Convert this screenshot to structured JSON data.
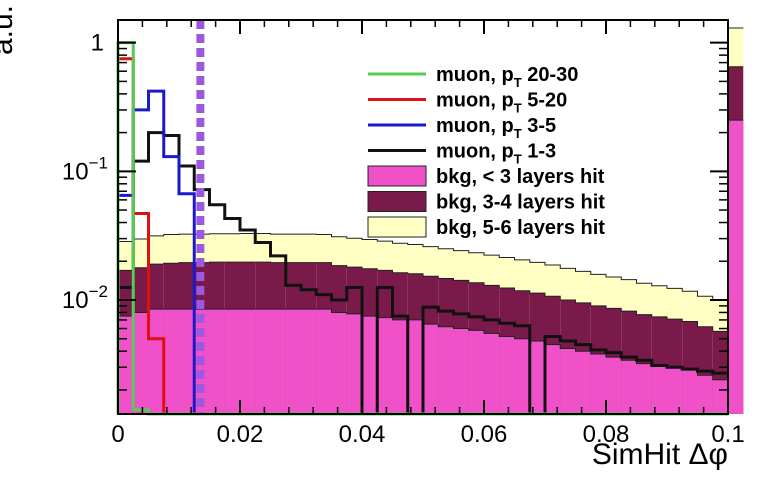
{
  "chart_data": {
    "type": "histogram",
    "title": "",
    "xlabel": "SimHit Δφ",
    "ylabel": "a.u.",
    "xlim": [
      0,
      0.1
    ],
    "ylim": [
      0.0013,
      1.5
    ],
    "yscale": "log",
    "bin_width": 0.0025,
    "x_ticks": [
      {
        "value": 0,
        "label": "0"
      },
      {
        "value": 0.02,
        "label": "0.02"
      },
      {
        "value": 0.04,
        "label": "0.04"
      },
      {
        "value": 0.06,
        "label": "0.06"
      },
      {
        "value": 0.08,
        "label": "0.08"
      },
      {
        "value": 0.1,
        "label": "0.1"
      }
    ],
    "y_ticks": [
      {
        "value": 1,
        "base": "1",
        "exp": ""
      },
      {
        "value": 0.1,
        "base": "10",
        "exp": "−1"
      },
      {
        "value": 0.01,
        "base": "10",
        "exp": "−2"
      }
    ],
    "cut_line": {
      "x": 0.0135,
      "color": "#9b59e0"
    },
    "legend": {
      "placement": "top-right",
      "entries": [
        {
          "kind": "line",
          "color": "#55cc55",
          "text": "muon, p",
          "sub": "T",
          "after": " 20-30"
        },
        {
          "kind": "line",
          "color": "#dd1111",
          "text": "muon, p",
          "sub": "T",
          "after": " 5-20"
        },
        {
          "kind": "line",
          "color": "#1a1acc",
          "text": "muon, p",
          "sub": "T",
          "after": " 3-5"
        },
        {
          "kind": "line",
          "color": "#111111",
          "text": "muon, p",
          "sub": "T",
          "after": " 1-3"
        },
        {
          "kind": "box",
          "color": "#f050c8",
          "text": "bkg, < 3 layers hit",
          "sub": "",
          "after": ""
        },
        {
          "kind": "box",
          "color": "#7a1a4a",
          "text": "bkg, 3-4 layers hit",
          "sub": "",
          "after": ""
        },
        {
          "kind": "box",
          "color": "#ffffc4",
          "text": "bkg, 5-6 layers hit",
          "sub": "",
          "after": ""
        }
      ]
    },
    "stacked_series": [
      {
        "name": "bkg, < 3 layers hit",
        "color": "#f050c8",
        "values": [
          0.0075,
          0.008,
          0.0085,
          0.0085,
          0.0085,
          0.0085,
          0.0085,
          0.0085,
          0.0085,
          0.0085,
          0.0085,
          0.0085,
          0.0085,
          0.0085,
          0.008,
          0.0078,
          0.0075,
          0.0073,
          0.007,
          0.007,
          0.0065,
          0.0062,
          0.006,
          0.0058,
          0.0055,
          0.0052,
          0.005,
          0.0048,
          0.0045,
          0.0042,
          0.004,
          0.0038,
          0.0036,
          0.0034,
          0.0032,
          0.0031,
          0.003,
          0.0029,
          0.0026,
          0.0024,
          0.25
        ]
      },
      {
        "name": "bkg, 3-4 layers hit",
        "color": "#7a1a4a",
        "values": [
          0.0095,
          0.0098,
          0.0105,
          0.0108,
          0.011,
          0.011,
          0.0112,
          0.0112,
          0.0112,
          0.0112,
          0.011,
          0.011,
          0.011,
          0.011,
          0.0105,
          0.0102,
          0.01,
          0.0097,
          0.0093,
          0.009,
          0.0088,
          0.0085,
          0.0082,
          0.0078,
          0.0075,
          0.0072,
          0.0068,
          0.0065,
          0.0062,
          0.0058,
          0.0055,
          0.0052,
          0.005,
          0.0048,
          0.0045,
          0.0043,
          0.0041,
          0.0039,
          0.0036,
          0.0033,
          0.4
        ]
      },
      {
        "name": "bkg, 5-6 layers hit",
        "color": "#ffffc4",
        "values": [
          0.0115,
          0.012,
          0.0125,
          0.013,
          0.013,
          0.013,
          0.013,
          0.013,
          0.0132,
          0.0132,
          0.013,
          0.013,
          0.013,
          0.0128,
          0.0125,
          0.0122,
          0.012,
          0.0117,
          0.0113,
          0.011,
          0.0107,
          0.0103,
          0.01,
          0.0097,
          0.0093,
          0.009,
          0.0087,
          0.0083,
          0.008,
          0.0076,
          0.0072,
          0.0068,
          0.0065,
          0.0062,
          0.0058,
          0.0055,
          0.0052,
          0.0049,
          0.0045,
          0.0042,
          0.65
        ]
      }
    ],
    "line_series": [
      {
        "name": "muon, pT 20-30",
        "color": "#55cc55",
        "values": [
          1.0,
          0.0014,
          0.0013,
          0.0013,
          0.0013,
          0.0013,
          0.0013,
          0.0013,
          0.0013,
          0.0013,
          0.0013,
          0.0013,
          0.0013,
          0.0013,
          0.0013,
          0.0013,
          0.0013,
          0.0013,
          0.0013,
          0.0013,
          0.0013,
          0.0013,
          0.0013,
          0.0013,
          0.0013,
          0.0013,
          0.0013,
          0.0013,
          0.0013,
          0.0013,
          0.0013,
          0.0013,
          0.0013,
          0.0013,
          0.0013,
          0.0013,
          0.0013,
          0.0013,
          0.0013,
          0.0013
        ]
      },
      {
        "name": "muon, pT 5-20",
        "color": "#dd1111",
        "values": [
          0.75,
          0.047,
          0.005,
          0.0013,
          0.0013,
          0.0013,
          0.0013,
          0.0013,
          0.0013,
          0.0013,
          0.0013,
          0.0013,
          0.0013,
          0.0013,
          0.0013,
          0.0013,
          0.0013,
          0.0013,
          0.0013,
          0.0013,
          0.0013,
          0.0013,
          0.0013,
          0.0013,
          0.0013,
          0.0013,
          0.0013,
          0.0013,
          0.0013,
          0.0013,
          0.0013,
          0.0013,
          0.0013,
          0.0013,
          0.0013,
          0.0013,
          0.0013,
          0.0013,
          0.0013,
          0.0013
        ]
      },
      {
        "name": "muon, pT 3-5",
        "color": "#1a1acc",
        "values": [
          0.065,
          0.3,
          0.42,
          0.13,
          0.067,
          0.0013,
          0.0013,
          0.0013,
          0.0013,
          0.0013,
          0.0013,
          0.0013,
          0.0013,
          0.0013,
          0.0013,
          0.0013,
          0.0013,
          0.0013,
          0.0013,
          0.0013,
          0.0013,
          0.0013,
          0.0013,
          0.0013,
          0.0013,
          0.0013,
          0.0013,
          0.0013,
          0.0013,
          0.0013,
          0.0013,
          0.0013,
          0.0013,
          0.0013,
          0.0013,
          0.0013,
          0.0013,
          0.0013,
          0.0013,
          0.0013
        ]
      },
      {
        "name": "muon, pT 1-3",
        "color": "#111111",
        "values": [
          0.0125,
          0.12,
          0.2,
          0.19,
          0.11,
          0.072,
          0.055,
          0.043,
          0.035,
          0.028,
          0.022,
          0.013,
          0.012,
          0.011,
          0.01,
          0.0125,
          0.0013,
          0.0125,
          0.0075,
          0.0013,
          0.0088,
          0.0082,
          0.0078,
          0.0074,
          0.007,
          0.0066,
          0.0063,
          0.0013,
          0.0052,
          0.0048,
          0.0045,
          0.0041,
          0.0039,
          0.0036,
          0.0034,
          0.0031,
          0.003,
          0.0029,
          0.0028,
          0.0027
        ]
      }
    ]
  }
}
